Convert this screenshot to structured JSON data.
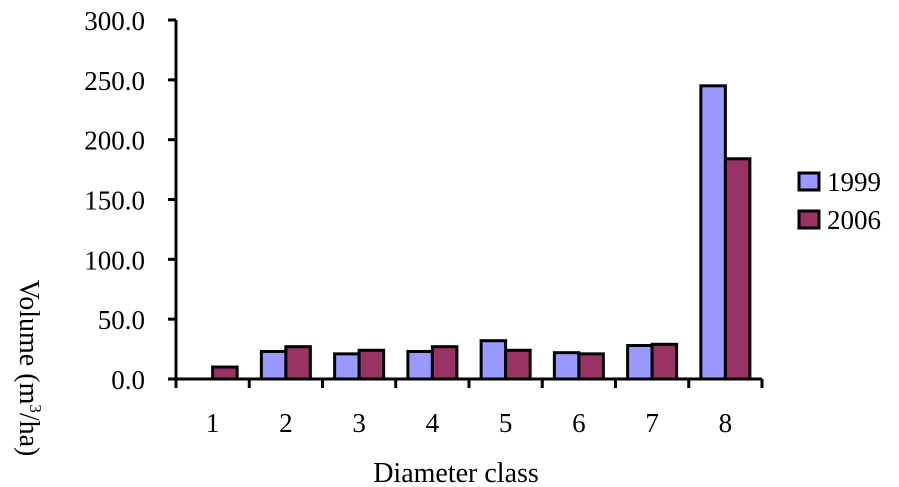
{
  "chart_data": {
    "type": "bar",
    "title": "",
    "xlabel": "Diameter class",
    "ylabel": {
      "pre": "Volume (m",
      "sup": "3",
      "post": "/ha)"
    },
    "ylim": [
      0,
      300
    ],
    "yticks": [
      "0.0",
      "50.0",
      "100.0",
      "150.0",
      "200.0",
      "250.0",
      "300.0"
    ],
    "categories": [
      "1",
      "2",
      "3",
      "4",
      "5",
      "6",
      "7",
      "8"
    ],
    "series": [
      {
        "name": "1999",
        "color": "#9999ff",
        "values": [
          0,
          23,
          21,
          23,
          32,
          22,
          28,
          245
        ]
      },
      {
        "name": "2006",
        "color": "#993366",
        "values": [
          10,
          27,
          24,
          27,
          24,
          21,
          29,
          184
        ]
      }
    ],
    "legend": "right",
    "grid": false
  }
}
